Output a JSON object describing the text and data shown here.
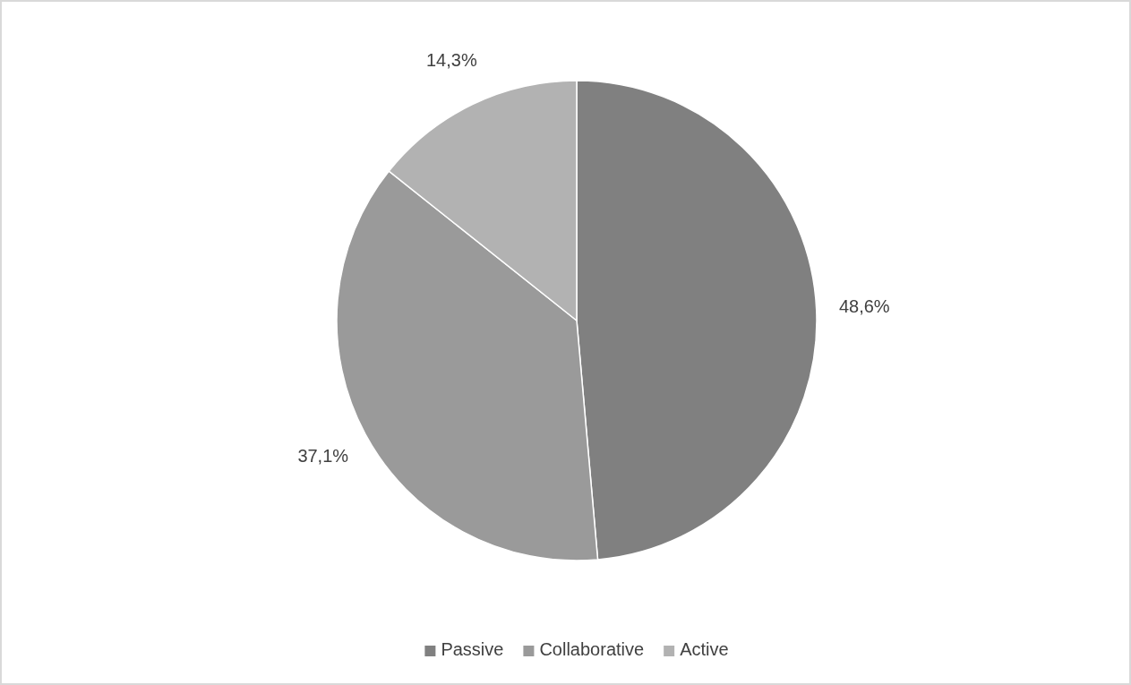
{
  "chart_data": {
    "type": "pie",
    "categories": [
      "Passive",
      "Collaborative",
      "Active"
    ],
    "values": [
      48.6,
      37.1,
      14.3
    ],
    "colors": [
      "#808080",
      "#9a9a9a",
      "#b2b2b2"
    ],
    "value_labels": [
      "48,6%",
      "37,1%",
      "14,3%"
    ],
    "legend": "bottom"
  }
}
